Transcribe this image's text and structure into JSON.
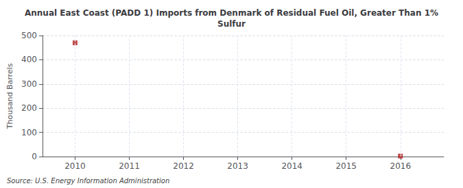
{
  "chart_data": {
    "type": "scatter",
    "title": "Annual East Coast (PADD 1) Imports from Denmark of Residual Fuel Oil, Greater Than 1%\nSulfur",
    "ylabel": "Thousand Barrels",
    "source": "Source: U.S. Energy Information Administration",
    "x": [
      2010,
      2016
    ],
    "values": [
      470,
      2
    ],
    "color": "#b22222",
    "marker": "square",
    "xlim": [
      2009.4,
      2016.8
    ],
    "xticks": [
      2010,
      2011,
      2012,
      2013,
      2014,
      2015,
      2016
    ],
    "ylim": [
      0,
      500
    ],
    "yticks": [
      0,
      100,
      200,
      300,
      400,
      500
    ],
    "grid": true
  }
}
